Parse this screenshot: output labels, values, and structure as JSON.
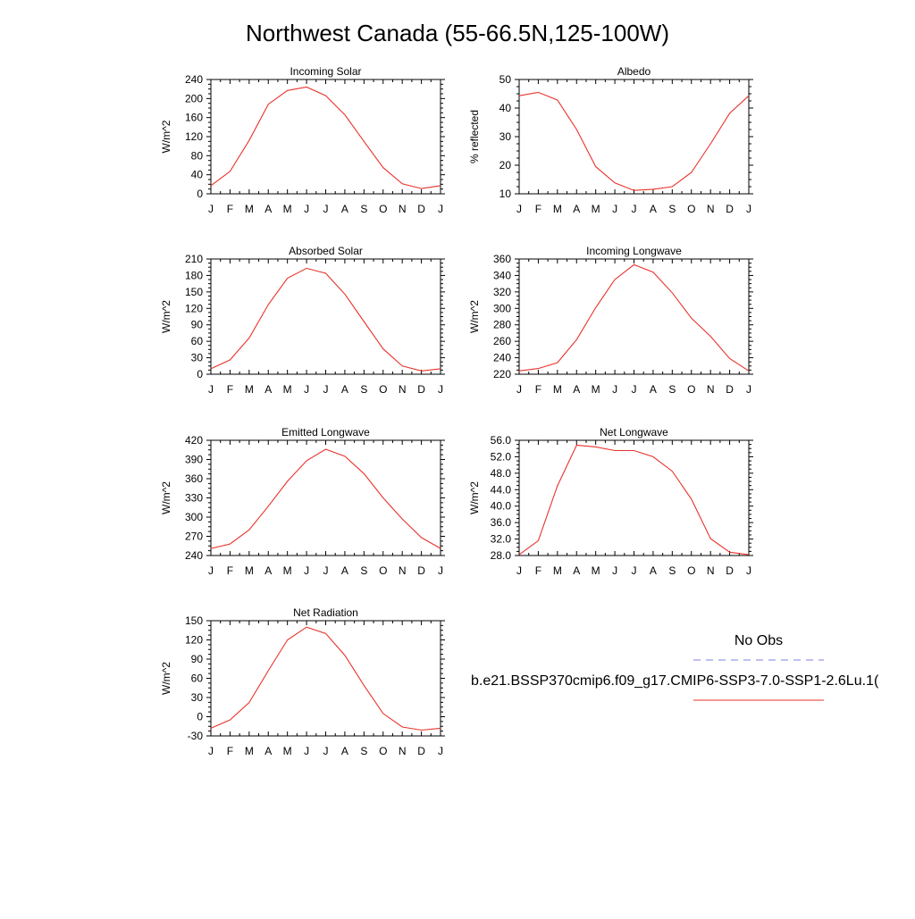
{
  "title": "Northwest Canada (55-66.5N,125-100W)",
  "months": [
    "J",
    "F",
    "M",
    "A",
    "M",
    "J",
    "J",
    "A",
    "S",
    "O",
    "N",
    "D",
    "J"
  ],
  "colors": {
    "model": "#e8322b",
    "obs": "#8080e0",
    "axis": "#000000"
  },
  "legend": {
    "obs_label": "No Obs",
    "model_label": "b.e21.BSSP370cmip6.f09_g17.CMIP6-SSP3-7.0-SSP1-2.6Lu.1("
  },
  "chart_data": [
    {
      "id": "incoming-solar",
      "type": "line",
      "title": "Incoming Solar",
      "ylabel": "W/m^2",
      "ylim": [
        0,
        240
      ],
      "yticks": [
        0,
        40,
        80,
        120,
        160,
        200,
        240
      ],
      "ytick_labels": [
        "0",
        "40",
        "80",
        "120",
        "160",
        "200",
        "240"
      ],
      "values": [
        17,
        47,
        112,
        188,
        217,
        224,
        206,
        166,
        110,
        55,
        21,
        11,
        17
      ]
    },
    {
      "id": "albedo",
      "type": "line",
      "title": "Albedo",
      "ylabel": "% reflected",
      "ylim": [
        10,
        50
      ],
      "yticks": [
        10,
        20,
        30,
        40,
        50
      ],
      "ytick_labels": [
        "10",
        "20",
        "30",
        "40",
        "50"
      ],
      "values": [
        44.3,
        45.5,
        42.8,
        32.5,
        19.5,
        13.8,
        11.2,
        11.6,
        12.5,
        17.5,
        27.5,
        38.2,
        44.3
      ]
    },
    {
      "id": "absorbed-solar",
      "type": "line",
      "title": "Absorbed Solar",
      "ylabel": "W/m^2",
      "ylim": [
        0,
        210
      ],
      "yticks": [
        0,
        30,
        60,
        90,
        120,
        150,
        180,
        210
      ],
      "ytick_labels": [
        "0",
        "30",
        "60",
        "90",
        "120",
        "150",
        "180",
        "210"
      ],
      "values": [
        10,
        26,
        66,
        127,
        175,
        193,
        184,
        146,
        96,
        46,
        15,
        6,
        10
      ]
    },
    {
      "id": "incoming-longwave",
      "type": "line",
      "title": "Incoming Longwave",
      "ylabel": "W/m^2",
      "ylim": [
        220,
        360
      ],
      "yticks": [
        220,
        240,
        260,
        280,
        300,
        320,
        340,
        360
      ],
      "ytick_labels": [
        "220",
        "240",
        "260",
        "280",
        "300",
        "320",
        "340",
        "360"
      ],
      "values": [
        224,
        227,
        234,
        262,
        301,
        335,
        353,
        344,
        319,
        288,
        266,
        239,
        224
      ]
    },
    {
      "id": "emitted-longwave",
      "type": "line",
      "title": "Emitted Longwave",
      "ylabel": "W/m^2",
      "ylim": [
        240,
        420
      ],
      "yticks": [
        240,
        270,
        300,
        330,
        360,
        390,
        420
      ],
      "ytick_labels": [
        "240",
        "270",
        "300",
        "330",
        "360",
        "390",
        "420"
      ],
      "values": [
        251,
        258,
        280,
        317,
        356,
        388,
        406,
        395,
        368,
        330,
        297,
        268,
        251
      ]
    },
    {
      "id": "net-longwave",
      "type": "line",
      "title": "Net Longwave",
      "ylabel": "W/m^2",
      "ylim": [
        28,
        56
      ],
      "yticks": [
        28,
        32,
        36,
        40,
        44,
        48,
        52,
        56
      ],
      "ytick_labels": [
        "28.0",
        "32.0",
        "36.0",
        "40.0",
        "44.0",
        "48.0",
        "52.0",
        "56.0"
      ],
      "values": [
        28.2,
        31.6,
        44.9,
        54.8,
        54.4,
        53.5,
        53.5,
        52.0,
        48.5,
        41.7,
        32.1,
        28.8,
        28.2
      ]
    },
    {
      "id": "net-radiation",
      "type": "line",
      "title": "Net Radiation",
      "ylabel": "W/m^2",
      "ylim": [
        -30,
        150
      ],
      "yticks": [
        -30,
        0,
        30,
        60,
        90,
        120,
        150
      ],
      "ytick_labels": [
        "-30",
        "0",
        "30",
        "60",
        "90",
        "120",
        "150"
      ],
      "values": [
        -18,
        -5,
        22,
        72,
        120,
        140,
        130,
        96,
        49,
        5,
        -16,
        -21,
        -18
      ]
    }
  ]
}
